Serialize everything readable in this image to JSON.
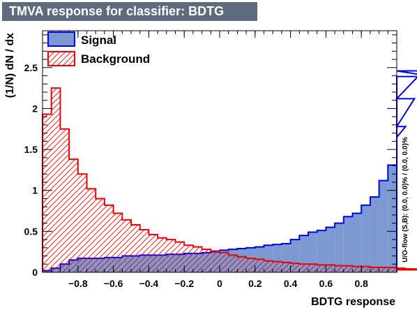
{
  "title": "TMVA response for classifier: BDTG",
  "chart_data": {
    "type": "histogram",
    "xlabel": "BDTG response",
    "ylabel": "(1/N) dN / dx",
    "xlim": [
      -1.0,
      1.0
    ],
    "ylim": [
      0,
      2.95
    ],
    "x_ticks": [
      -0.8,
      -0.6,
      -0.4,
      -0.2,
      0,
      0.2,
      0.4,
      0.6,
      0.8
    ],
    "x_tick_labels": [
      "−0.8",
      "−0.6",
      "−0.4",
      "−0.2",
      "0",
      "0.2",
      "0.4",
      "0.6",
      "0.8"
    ],
    "y_ticks": [
      0,
      0.5,
      1,
      1.5,
      2,
      2.5
    ],
    "y_tick_labels": [
      "0",
      "0.5",
      "1",
      "1.5",
      "2",
      "2.5"
    ],
    "bin_edges_start": -1.0,
    "bin_width": 0.05,
    "legend": {
      "position": "top-left"
    },
    "series": [
      {
        "name": "Signal",
        "style": "filled",
        "fill_color": "#7d99d1",
        "line_color": "#0000ee",
        "values": [
          0.02,
          0.05,
          0.1,
          0.15,
          0.17,
          0.17,
          0.17,
          0.18,
          0.18,
          0.2,
          0.2,
          0.21,
          0.21,
          0.21,
          0.22,
          0.22,
          0.23,
          0.23,
          0.24,
          0.25,
          0.27,
          0.28,
          0.29,
          0.3,
          0.31,
          0.33,
          0.34,
          0.35,
          0.4,
          0.45,
          0.49,
          0.51,
          0.55,
          0.6,
          0.68,
          0.72,
          0.82,
          0.92,
          1.12,
          1.31,
          1.65,
          1.78,
          2.12,
          2.46,
          2.39
        ]
      },
      {
        "name": "Background",
        "style": "hatched",
        "fill_color": "#ee0000",
        "line_color": "#ee0000",
        "values": [
          1.93,
          2.25,
          1.75,
          1.38,
          1.2,
          1.02,
          0.9,
          0.82,
          0.72,
          0.64,
          0.58,
          0.52,
          0.46,
          0.42,
          0.4,
          0.37,
          0.33,
          0.31,
          0.28,
          0.26,
          0.24,
          0.21,
          0.19,
          0.17,
          0.16,
          0.14,
          0.13,
          0.12,
          0.11,
          0.1,
          0.1,
          0.09,
          0.09,
          0.08,
          0.08,
          0.07,
          0.07,
          0.06,
          0.06,
          0.06,
          0.05,
          0.05,
          0.04,
          0.04,
          0.03
        ]
      }
    ],
    "overflow_text": "U/O-flow (S,B): (0.0, 0.0)% / (0.0, 0.0)%"
  }
}
